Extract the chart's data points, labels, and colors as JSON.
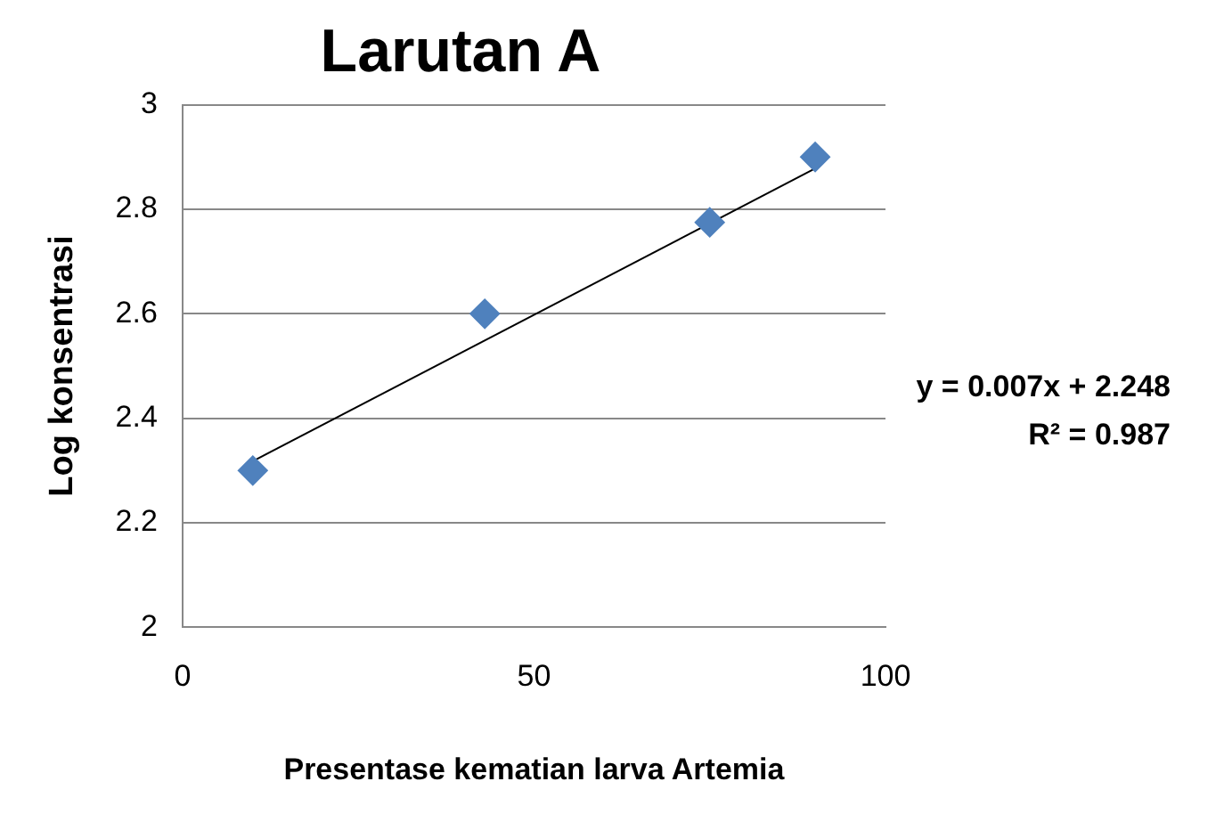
{
  "chart_data": {
    "type": "scatter",
    "title": "Larutan A",
    "xlabel": "Presentase kematian larva Artemia",
    "ylabel": "Log konsentrasi",
    "x": [
      10,
      43,
      75,
      90
    ],
    "series": [
      {
        "type": "scatter",
        "color": "#4f81bd",
        "values": [
          2.3,
          2.6,
          2.775,
          2.9
        ],
        "marker": "diamond"
      },
      {
        "type": "line",
        "color": "#000000",
        "x": [
          10,
          90
        ],
        "values": [
          2.318,
          2.878
        ],
        "marker": "none"
      }
    ],
    "xlim": [
      0,
      100
    ],
    "xticks": [
      0,
      50,
      100
    ],
    "ylim": [
      2,
      3
    ],
    "yticks": [
      2,
      2.2,
      2.4,
      2.6,
      2.8,
      3
    ],
    "grid": "y",
    "legend": false,
    "annotations": [
      "y = 0.007x + 2.248",
      "R² = 0.987"
    ]
  }
}
